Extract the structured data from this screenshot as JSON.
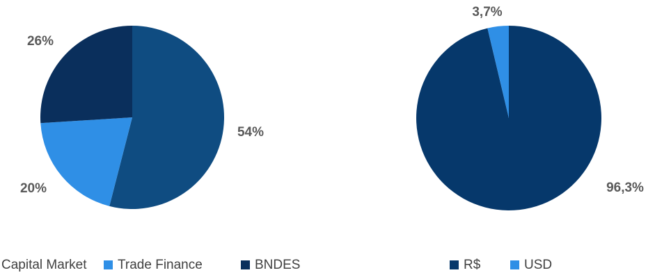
{
  "chart_data": [
    {
      "type": "pie",
      "categories": [
        "Capital Market",
        "Trade Finance",
        "BNDES"
      ],
      "values": [
        54,
        20,
        26
      ],
      "labels": [
        "54%",
        "20%",
        "26%"
      ],
      "colors": [
        "#0f4c81",
        "#2f8fe6",
        "#0a2f5c"
      ],
      "legend_position": "bottom"
    },
    {
      "type": "pie",
      "categories": [
        "R$",
        "USD"
      ],
      "values": [
        96.3,
        3.7
      ],
      "labels": [
        "96,3%",
        "3,7%"
      ],
      "colors": [
        "#06386b",
        "#2f8fe6"
      ],
      "legend_position": "bottom"
    }
  ]
}
